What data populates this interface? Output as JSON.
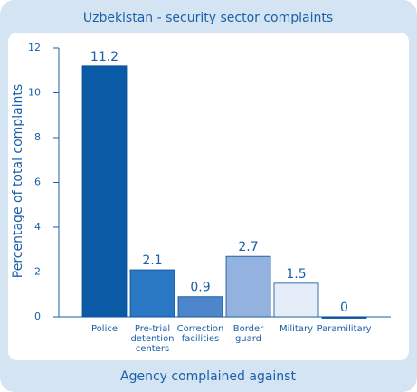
{
  "chart_data": {
    "type": "bar",
    "title": "Uzbekistan - security sector complaints",
    "x_label": "Agency complained against",
    "y_label": "Percentage of total complaints",
    "categories": [
      "Police",
      "Pre-trial\ndetention\ncenters",
      "Correction\nfacilities",
      "Border\nguard",
      "Military",
      "Paramilitary"
    ],
    "values": [
      11.2,
      2.1,
      0.9,
      2.7,
      1.5,
      0
    ],
    "colors": [
      "#0b5aa6",
      "#2a77c3",
      "#4d86cb",
      "#93b2df",
      "#e4edf8",
      "#0b5aa6"
    ],
    "ylim": [
      0,
      12
    ],
    "yticks": [
      0,
      2,
      4,
      6,
      8,
      10,
      12
    ]
  }
}
